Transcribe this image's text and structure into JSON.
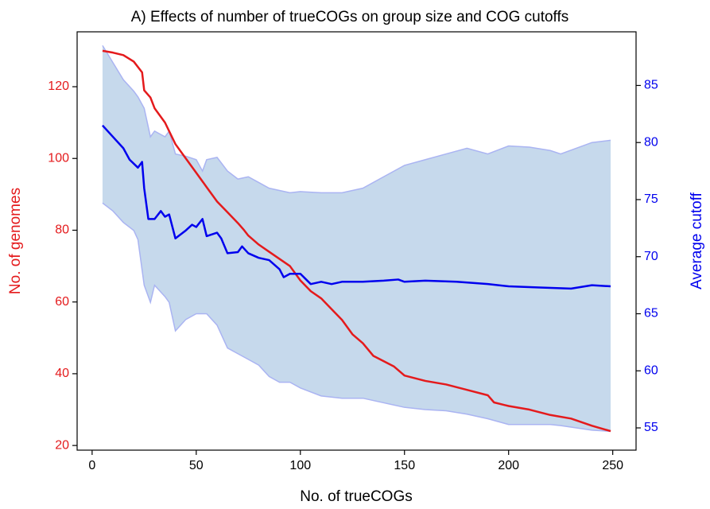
{
  "chart_data": {
    "type": "line",
    "title": "A) Effects of number of trueCOGs on group size and COG cutoffs",
    "xlabel": "No. of trueCOGs",
    "ylabel": "No. of genomes",
    "y2label": "Average cutoff",
    "xlim": [
      -7.2,
      261.2
    ],
    "xticks": [
      0,
      50,
      100,
      150,
      200,
      250
    ],
    "ylim": [
      18.7,
      135.3
    ],
    "yticks": [
      20,
      40,
      60,
      80,
      100,
      120
    ],
    "y2lim": [
      53.05,
      89.7
    ],
    "y2ticks": [
      55,
      60,
      65,
      70,
      75,
      80,
      85
    ],
    "grid": false,
    "band": {
      "axis": "y2",
      "color": "#c6d9ec",
      "edge_color": "#aab4f2",
      "x": [
        5,
        10,
        15,
        20,
        22,
        25,
        28,
        30,
        35,
        37,
        40,
        45,
        50,
        53,
        55,
        60,
        65,
        70,
        75,
        80,
        85,
        90,
        95,
        100,
        110,
        120,
        130,
        140,
        150,
        160,
        170,
        180,
        190,
        200,
        210,
        220,
        225,
        240,
        249
      ],
      "upper": [
        88.5,
        87,
        85.5,
        84.5,
        84,
        83,
        80.5,
        81,
        80.5,
        81,
        79,
        78.8,
        78.5,
        77.5,
        78.5,
        78.7,
        77.5,
        76.8,
        77,
        76.5,
        76,
        75.8,
        75.6,
        75.7,
        75.6,
        75.6,
        76,
        77,
        78,
        78.5,
        79,
        79.5,
        79,
        79.7,
        79.6,
        79.3,
        79,
        80,
        80.2
      ],
      "lower": [
        74.7,
        74,
        73,
        72.3,
        71.5,
        67.5,
        66,
        67.5,
        66.5,
        66,
        63.5,
        64.5,
        65,
        65,
        65,
        64,
        62,
        61.5,
        61,
        60.5,
        59.5,
        59,
        59,
        58.5,
        57.8,
        57.6,
        57.6,
        57.2,
        56.8,
        56.6,
        56.5,
        56.2,
        55.8,
        55.3,
        55.3,
        55.3,
        55.2,
        54.8,
        54.7
      ]
    },
    "series": [
      {
        "name": "No. of genomes",
        "color": "#e41a1c",
        "axis": "y",
        "x": [
          5,
          10,
          15,
          20,
          24,
          25,
          28,
          30,
          35,
          40,
          45,
          50,
          55,
          60,
          65,
          70,
          73,
          75,
          80,
          85,
          90,
          95,
          100,
          105,
          110,
          115,
          120,
          125,
          130,
          135,
          140,
          145,
          150,
          160,
          170,
          180,
          190,
          193,
          200,
          210,
          220,
          230,
          240,
          249
        ],
        "values": [
          130,
          129.5,
          128.8,
          127,
          124,
          119,
          117,
          114,
          110,
          104,
          100,
          96,
          92,
          88,
          85,
          82,
          80,
          78.5,
          76,
          74,
          72,
          70,
          66,
          63,
          61,
          58,
          55,
          51,
          48.5,
          45,
          43.5,
          42,
          39.5,
          38,
          37,
          35.5,
          34,
          32,
          31,
          30,
          28.5,
          27.5,
          25.5,
          24
        ]
      },
      {
        "name": "Average cutoff",
        "color": "#0000ee",
        "axis": "y2",
        "x": [
          5,
          10,
          15,
          18,
          22,
          24,
          25,
          27,
          30,
          33,
          35,
          37,
          40,
          45,
          48,
          50,
          53,
          55,
          60,
          62,
          65,
          70,
          72,
          75,
          80,
          85,
          90,
          92,
          95,
          100,
          105,
          110,
          115,
          120,
          130,
          140,
          147,
          150,
          160,
          175,
          190,
          200,
          215,
          230,
          240,
          249
        ],
        "values": [
          81.5,
          80.5,
          79.5,
          78.5,
          77.8,
          78.3,
          76,
          73.3,
          73.3,
          74,
          73.5,
          73.7,
          71.6,
          72.3,
          72.8,
          72.6,
          73.3,
          71.8,
          72.1,
          71.6,
          70.3,
          70.4,
          70.9,
          70.3,
          69.9,
          69.7,
          68.9,
          68.2,
          68.5,
          68.5,
          67.6,
          67.8,
          67.6,
          67.8,
          67.8,
          67.9,
          68,
          67.8,
          67.9,
          67.8,
          67.6,
          67.4,
          67.3,
          67.2,
          67.5,
          67.4
        ]
      }
    ]
  }
}
